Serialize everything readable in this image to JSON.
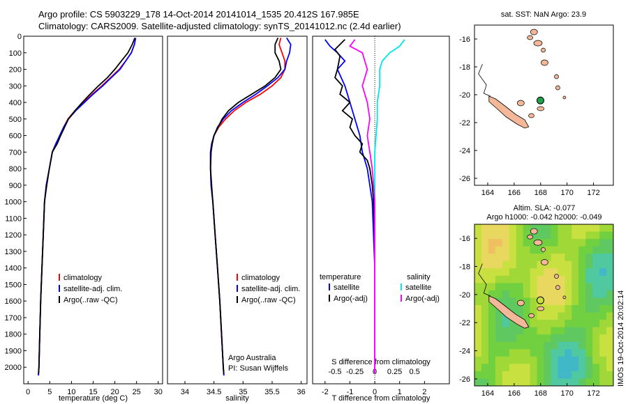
{
  "header": {
    "title_line1": "Argo profile: CS 5903229_178 14-Oct-2014 20141014_1535 20.412S 167.985E",
    "title_line2": "Climatology: CARS2009. Satellite-adjusted climatology: synTS_20141012.nc (2.4d earlier)"
  },
  "colors": {
    "climatology": "#ff0000",
    "satellite": "#0000ff",
    "argo": "#000000",
    "salinity_satellite": "#00e5e5",
    "salinity_argo": "#ff00ff",
    "land": "#f4b898",
    "argo_marker": "#1fa04a"
  },
  "panels": {
    "temperature": {
      "xlabel": "temperature (deg C)",
      "legend": [
        "climatology",
        "satellite-adj. clim.",
        "Argo(..raw -QC)"
      ]
    },
    "salinity": {
      "xlabel": "salinity",
      "legend": [
        "climatology",
        "satellite-adj. clim.",
        "Argo(..raw -QC)"
      ],
      "credit1": "Argo Australia",
      "credit2": "PI: Susan Wijffels"
    },
    "difference": {
      "xlabel": "T difference from climatology",
      "xlabel_top": "S difference from climatology",
      "legend_temp_title": "temperature",
      "legend_temp": [
        "satellite",
        "Argo(-adj)"
      ],
      "legend_sal_title": "salinity",
      "legend_sal": [
        "satellite",
        "Argo(-adj)"
      ]
    },
    "map_sst": {
      "title": "sat. SST: NaN Argo: 23.9"
    },
    "map_sla": {
      "title1": "Altim. SLA: -0.077",
      "title2": "Argo h1000: -0.042 h2000: -0.049",
      "watermark": "IMOS 19-Oct-2014 20:02:14"
    }
  },
  "chart_data": [
    {
      "type": "line",
      "name": "temperature profile",
      "xlabel": "temperature (deg C)",
      "ylabel": "",
      "xlim": [
        -1,
        31
      ],
      "xticks": [
        0,
        5,
        10,
        15,
        20,
        25,
        30
      ],
      "ylim": [
        2100,
        0
      ],
      "yticks": [
        0,
        100,
        200,
        300,
        400,
        500,
        600,
        700,
        800,
        900,
        1000,
        1100,
        1200,
        1300,
        1400,
        1500,
        1600,
        1700,
        1800,
        1900,
        2000
      ],
      "series": [
        {
          "name": "climatology",
          "color": "#ff0000",
          "points": [
            [
              24.8,
              10
            ],
            [
              24.5,
              50
            ],
            [
              23.8,
              100
            ],
            [
              22.5,
              150
            ],
            [
              21,
              200
            ],
            [
              19,
              250
            ],
            [
              17,
              300
            ],
            [
              14.8,
              350
            ],
            [
              12.8,
              400
            ],
            [
              10.8,
              450
            ],
            [
              9.2,
              500
            ],
            [
              8.2,
              550
            ],
            [
              7.3,
              600
            ],
            [
              6.4,
              650
            ],
            [
              5.6,
              700
            ],
            [
              4.9,
              800
            ],
            [
              4.2,
              900
            ],
            [
              3.8,
              1000
            ],
            [
              3.5,
              1200
            ],
            [
              3.2,
              1400
            ],
            [
              2.9,
              1600
            ],
            [
              2.7,
              1800
            ],
            [
              2.5,
              2000
            ],
            [
              2.4,
              2050
            ]
          ]
        },
        {
          "name": "satellite-adj. clim.",
          "color": "#0000ff",
          "points": [
            [
              24.8,
              10
            ],
            [
              24.5,
              50
            ],
            [
              23.8,
              100
            ],
            [
              22.5,
              150
            ],
            [
              21.2,
              200
            ],
            [
              19.2,
              250
            ],
            [
              17.2,
              300
            ],
            [
              15,
              350
            ],
            [
              13,
              400
            ],
            [
              11,
              450
            ],
            [
              9.3,
              500
            ],
            [
              8.2,
              550
            ],
            [
              7.3,
              600
            ],
            [
              6.4,
              650
            ],
            [
              5.6,
              700
            ],
            [
              4.9,
              800
            ],
            [
              4.2,
              900
            ],
            [
              3.8,
              1000
            ],
            [
              3.5,
              1200
            ],
            [
              3.2,
              1400
            ],
            [
              2.9,
              1600
            ],
            [
              2.7,
              1800
            ],
            [
              2.5,
              2000
            ],
            [
              2.4,
              2050
            ]
          ]
        },
        {
          "name": "Argo(..raw -QC)",
          "color": "#000000",
          "points": [
            [
              24.6,
              10
            ],
            [
              24,
              50
            ],
            [
              23,
              100
            ],
            [
              21.5,
              150
            ],
            [
              20,
              200
            ],
            [
              18.3,
              250
            ],
            [
              16.2,
              300
            ],
            [
              14.3,
              350
            ],
            [
              12.5,
              400
            ],
            [
              10.8,
              450
            ],
            [
              9.3,
              500
            ],
            [
              8.4,
              550
            ],
            [
              7.5,
              600
            ],
            [
              6.7,
              650
            ],
            [
              5.6,
              700
            ],
            [
              4.9,
              800
            ],
            [
              4.3,
              900
            ],
            [
              3.8,
              1000
            ],
            [
              3.5,
              1200
            ],
            [
              3.2,
              1400
            ],
            [
              2.9,
              1600
            ],
            [
              2.7,
              1800
            ],
            [
              2.5,
              2000
            ],
            [
              2.4,
              2040
            ]
          ]
        }
      ]
    },
    {
      "type": "line",
      "name": "salinity profile",
      "xlabel": "salinity",
      "ylabel": "",
      "xlim": [
        33.7,
        36.1
      ],
      "xticks": [
        34,
        34.5,
        35,
        35.5,
        36
      ],
      "ylim": [
        2100,
        0
      ],
      "series": [
        {
          "name": "climatology",
          "color": "#ff0000",
          "points": [
            [
              35.65,
              10
            ],
            [
              35.62,
              50
            ],
            [
              35.67,
              100
            ],
            [
              35.72,
              150
            ],
            [
              35.72,
              200
            ],
            [
              35.65,
              250
            ],
            [
              35.5,
              300
            ],
            [
              35.3,
              350
            ],
            [
              35.05,
              400
            ],
            [
              34.85,
              450
            ],
            [
              34.7,
              500
            ],
            [
              34.58,
              550
            ],
            [
              34.5,
              600
            ],
            [
              34.46,
              650
            ],
            [
              34.44,
              700
            ],
            [
              34.44,
              800
            ],
            [
              34.45,
              900
            ],
            [
              34.48,
              1000
            ],
            [
              34.52,
              1200
            ],
            [
              34.56,
              1400
            ],
            [
              34.6,
              1600
            ],
            [
              34.63,
              1800
            ],
            [
              34.66,
              2000
            ],
            [
              34.67,
              2050
            ]
          ]
        },
        {
          "name": "satellite-adj. clim.",
          "color": "#0000ff",
          "points": [
            [
              35.75,
              10
            ],
            [
              35.82,
              50
            ],
            [
              35.8,
              100
            ],
            [
              35.75,
              150
            ],
            [
              35.72,
              200
            ],
            [
              35.6,
              250
            ],
            [
              35.42,
              300
            ],
            [
              35.22,
              350
            ],
            [
              35,
              400
            ],
            [
              34.8,
              450
            ],
            [
              34.66,
              500
            ],
            [
              34.56,
              550
            ],
            [
              34.5,
              600
            ],
            [
              34.46,
              650
            ],
            [
              34.44,
              700
            ],
            [
              34.44,
              800
            ],
            [
              34.45,
              900
            ],
            [
              34.48,
              1000
            ],
            [
              34.52,
              1200
            ],
            [
              34.56,
              1400
            ],
            [
              34.6,
              1600
            ],
            [
              34.63,
              1800
            ],
            [
              34.66,
              2000
            ],
            [
              34.67,
              2050
            ]
          ]
        },
        {
          "name": "Argo(..raw -QC)",
          "color": "#000000",
          "points": [
            [
              35.6,
              10
            ],
            [
              35.55,
              50
            ],
            [
              35.55,
              100
            ],
            [
              35.62,
              150
            ],
            [
              35.65,
              200
            ],
            [
              35.55,
              250
            ],
            [
              35.38,
              300
            ],
            [
              35.15,
              350
            ],
            [
              34.92,
              400
            ],
            [
              34.75,
              450
            ],
            [
              34.64,
              500
            ],
            [
              34.57,
              550
            ],
            [
              34.5,
              600
            ],
            [
              34.47,
              650
            ],
            [
              34.45,
              700
            ],
            [
              34.44,
              800
            ],
            [
              34.46,
              900
            ],
            [
              34.48,
              1000
            ],
            [
              34.52,
              1200
            ],
            [
              34.56,
              1400
            ],
            [
              34.6,
              1600
            ],
            [
              34.63,
              1800
            ],
            [
              34.66,
              2000
            ],
            [
              34.67,
              2040
            ]
          ]
        }
      ]
    },
    {
      "type": "line",
      "name": "difference from climatology",
      "xlabel": "T difference from climatology",
      "xlabel_top": "S difference from climatology",
      "xlim": [
        -2.5,
        3.0
      ],
      "xticks": [
        -2,
        -1,
        0,
        1,
        2
      ],
      "xticks_top": [
        -0.5,
        -0.25,
        0,
        0.25,
        0.5
      ],
      "ylim": [
        2100,
        0
      ],
      "series": [
        {
          "name": "temperature satellite",
          "color": "#0000ff",
          "points": [
            [
              -2,
              20
            ],
            [
              -1.8,
              60
            ],
            [
              -1.5,
              100
            ],
            [
              -1.2,
              150
            ],
            [
              -1.5,
              200
            ],
            [
              -1.2,
              300
            ],
            [
              -1,
              400
            ],
            [
              -0.8,
              500
            ],
            [
              -0.6,
              600
            ],
            [
              -0.5,
              700
            ],
            [
              -0.3,
              800
            ],
            [
              -0.2,
              900
            ],
            [
              -0.1,
              1000
            ],
            [
              -0.05,
              1200
            ],
            [
              0,
              1400
            ],
            [
              0,
              1600
            ],
            [
              0,
              1800
            ],
            [
              0,
              2000
            ],
            [
              0,
              2040
            ]
          ]
        },
        {
          "name": "temperature Argo(-adj)",
          "color": "#000000",
          "points": [
            [
              -1.2,
              20
            ],
            [
              -1.6,
              80
            ],
            [
              -1.4,
              120
            ],
            [
              -1.5,
              200
            ],
            [
              -1.6,
              250
            ],
            [
              -1.3,
              300
            ],
            [
              -1.4,
              350
            ],
            [
              -1,
              400
            ],
            [
              -1.3,
              450
            ],
            [
              -0.9,
              500
            ],
            [
              -1,
              550
            ],
            [
              -0.8,
              600
            ],
            [
              -0.5,
              650
            ],
            [
              -0.6,
              700
            ],
            [
              -0.3,
              750
            ],
            [
              -0.2,
              800
            ],
            [
              -0.1,
              900
            ],
            [
              -0.05,
              1000
            ],
            [
              0,
              1200
            ],
            [
              0,
              1400
            ],
            [
              0,
              1600
            ],
            [
              0,
              1800
            ],
            [
              0,
              2000
            ],
            [
              0,
              2040
            ]
          ]
        },
        {
          "name": "salinity satellite",
          "color": "#00e5e5",
          "points": [
            [
              1.2,
              20
            ],
            [
              1.0,
              60
            ],
            [
              0.6,
              100
            ],
            [
              0.3,
              150
            ],
            [
              0.2,
              200
            ],
            [
              0.2,
              300
            ],
            [
              0.1,
              400
            ],
            [
              0.1,
              500
            ],
            [
              0.05,
              600
            ],
            [
              0,
              700
            ],
            [
              0,
              800
            ],
            [
              0,
              1000
            ],
            [
              0,
              1200
            ],
            [
              0,
              1400
            ],
            [
              0,
              1600
            ],
            [
              0,
              1800
            ],
            [
              0,
              2040
            ]
          ]
        },
        {
          "name": "salinity Argo(-adj)",
          "color": "#ff00ff",
          "points": [
            [
              -0.8,
              20
            ],
            [
              -1,
              60
            ],
            [
              -0.5,
              100
            ],
            [
              -0.4,
              150
            ],
            [
              -0.3,
              200
            ],
            [
              -0.5,
              300
            ],
            [
              -0.3,
              400
            ],
            [
              -0.2,
              500
            ],
            [
              -0.3,
              600
            ],
            [
              -0.2,
              700
            ],
            [
              -0.1,
              800
            ],
            [
              -0.05,
              900
            ],
            [
              0,
              1000
            ],
            [
              0,
              1200
            ],
            [
              0,
              1600
            ],
            [
              0,
              2040
            ]
          ]
        }
      ]
    },
    {
      "type": "scatter",
      "name": "SST map",
      "title": "sat. SST: NaN Argo: 23.9",
      "xlim": [
        163,
        173.5
      ],
      "xticks": [
        164,
        166,
        168,
        170,
        172
      ],
      "ylim": [
        -26.5,
        -15
      ],
      "yticks": [
        -16,
        -18,
        -20,
        -22,
        -24,
        -26
      ],
      "argo_position": {
        "lon": 167.985,
        "lat": -20.412
      }
    },
    {
      "type": "heatmap",
      "name": "SLA map",
      "title": "Altim. SLA: -0.077",
      "subtitle": "Argo h1000: -0.042 h2000: -0.049",
      "xlim": [
        163,
        173.5
      ],
      "xticks": [
        164,
        166,
        168,
        170,
        172
      ],
      "ylim": [
        -26.5,
        -15
      ],
      "yticks": [
        -16,
        -18,
        -20,
        -22,
        -24,
        -26
      ],
      "argo_position": {
        "lon": 167.985,
        "lat": -20.412
      }
    }
  ]
}
